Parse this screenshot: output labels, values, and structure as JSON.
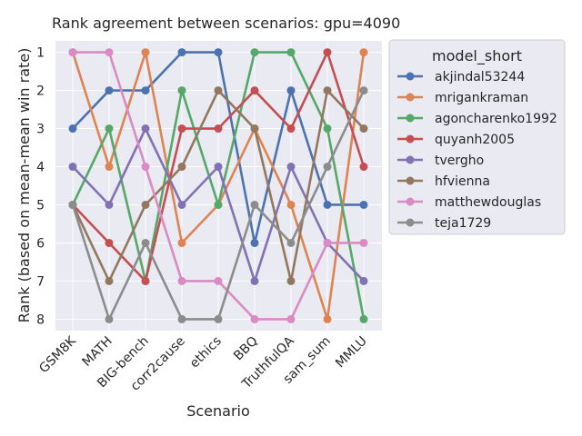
{
  "chart_data": {
    "type": "line",
    "title": "Rank agreement between scenarios: gpu=4090",
    "xlabel": "Scenario",
    "ylabel": "Rank (based on mean-mean win rate)",
    "categories": [
      "GSM8K",
      "MATH",
      "BIG-bench",
      "corr2cause",
      "ethics",
      "BBQ",
      "TruthfulQA",
      "sam_sum",
      "MMLU"
    ],
    "y_ticks": [
      1,
      2,
      3,
      4,
      5,
      6,
      7,
      8
    ],
    "ylim": [
      8.3,
      0.7
    ],
    "y_inverted": true,
    "grid": true,
    "legend_title": "model_short",
    "legend_position": "outside-right",
    "series": [
      {
        "name": "akjindal53244",
        "color": "#4c72b0",
        "values": [
          3,
          2,
          2,
          1,
          1,
          6,
          2,
          5,
          5
        ]
      },
      {
        "name": "mrigankraman",
        "color": "#dd8452",
        "values": [
          1,
          4,
          1,
          6,
          5,
          3,
          5,
          8,
          1
        ]
      },
      {
        "name": "agoncharenko1992",
        "color": "#55a868",
        "values": [
          5,
          3,
          7,
          2,
          5,
          1,
          1,
          3,
          8
        ]
      },
      {
        "name": "quyanh2005",
        "color": "#c44e52",
        "values": [
          5,
          6,
          7,
          3,
          3,
          2,
          3,
          1,
          4
        ]
      },
      {
        "name": "tvergho",
        "color": "#8172b3",
        "values": [
          4,
          5,
          3,
          5,
          4,
          7,
          4,
          6,
          7
        ]
      },
      {
        "name": "hfvienna",
        "color": "#937860",
        "values": [
          5,
          7,
          5,
          4,
          2,
          3,
          7,
          2,
          3
        ]
      },
      {
        "name": "matthewdouglas",
        "color": "#da8bc3",
        "values": [
          1,
          1,
          4,
          7,
          7,
          8,
          8,
          6,
          6
        ]
      },
      {
        "name": "teja1729",
        "color": "#8c8c8c",
        "values": [
          5,
          8,
          6,
          8,
          8,
          5,
          6,
          4,
          2
        ]
      }
    ]
  }
}
